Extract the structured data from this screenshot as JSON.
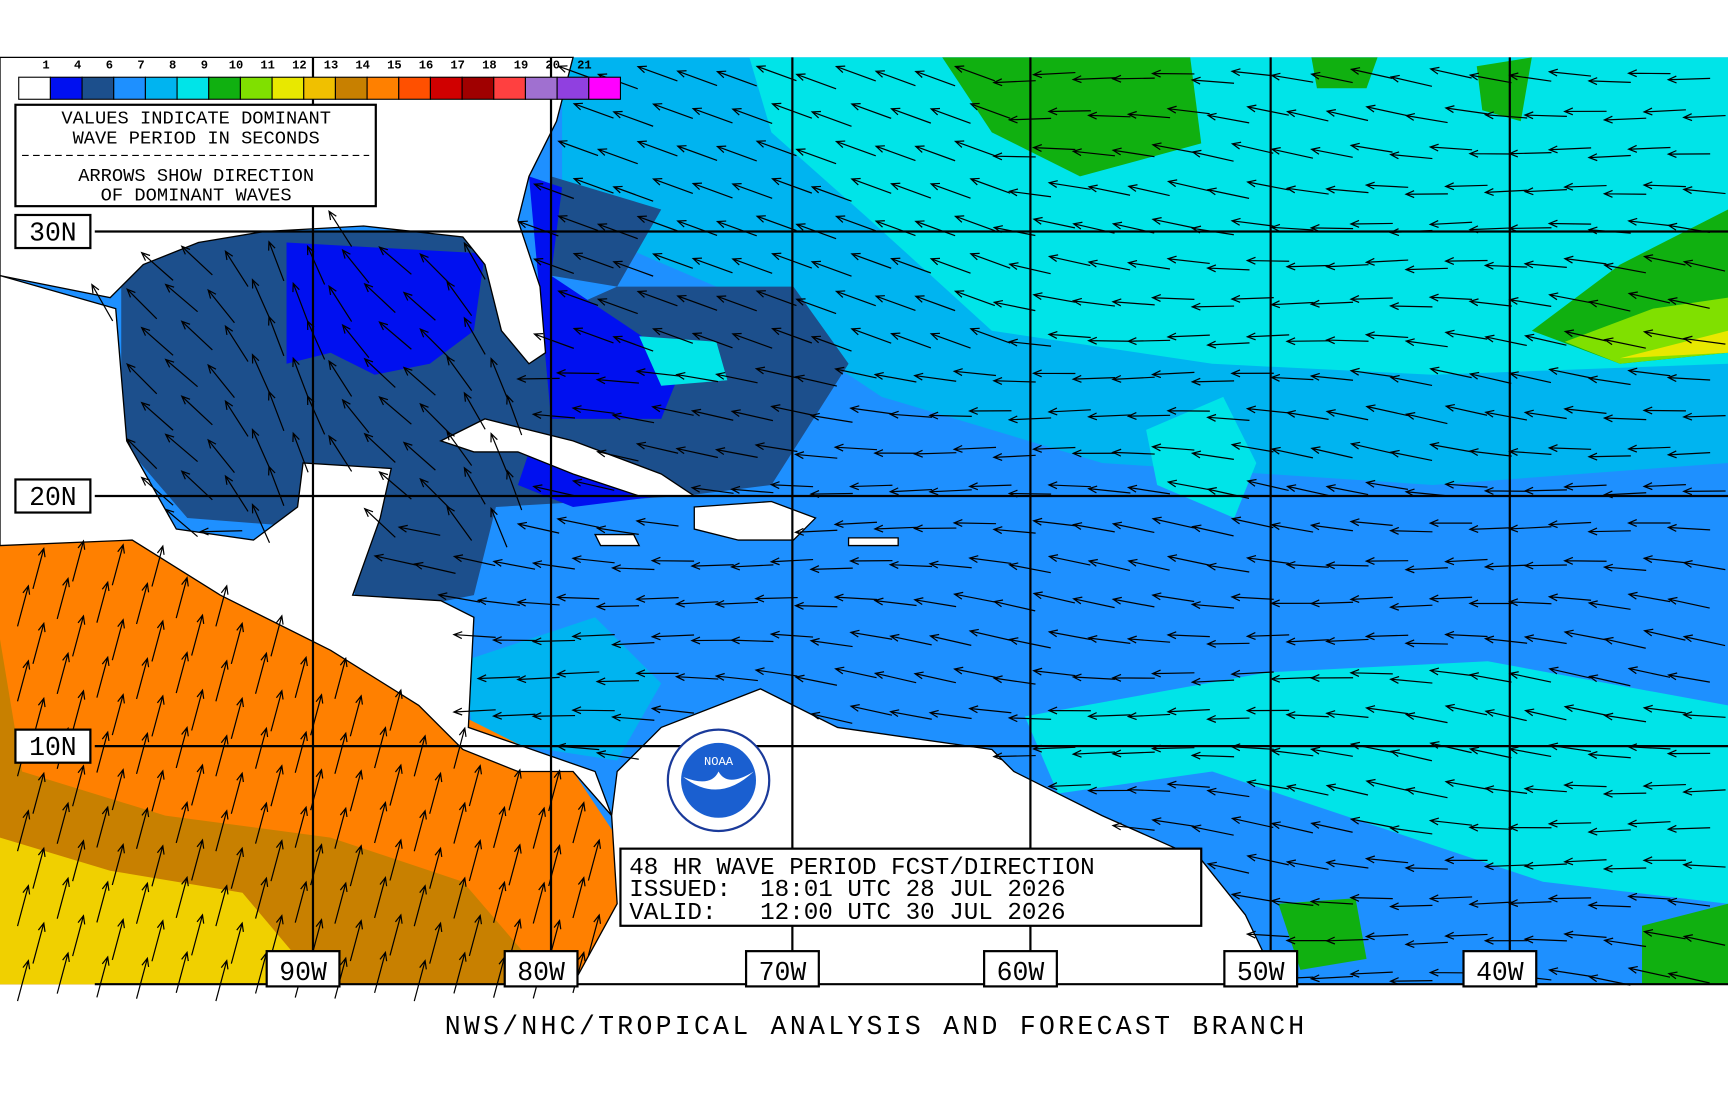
{
  "legend": {
    "labels": [
      1,
      4,
      6,
      7,
      8,
      9,
      10,
      11,
      12,
      13,
      14,
      15,
      16,
      17,
      18,
      19,
      20,
      21
    ],
    "colors": [
      "#ffffff",
      "#0010f0",
      "#1c4f8c",
      "#1e90ff",
      "#00b4f0",
      "#00e4e8",
      "#10b010",
      "#80e000",
      "#e8e800",
      "#f0c000",
      "#c88000",
      "#ff8000",
      "#ff5000",
      "#d00000",
      "#a00000",
      "#ff4040",
      "#a070d0",
      "#9040e0",
      "#ff00ff"
    ]
  },
  "info_box": {
    "lines": [
      "VALUES INDICATE DOMINANT",
      "WAVE PERIOD IN SECONDS",
      "ARROWS SHOW DIRECTION",
      "OF DOMINANT WAVES"
    ]
  },
  "latitude_labels": [
    "30N",
    "20N",
    "10N"
  ],
  "longitude_labels": [
    "90W",
    "80W",
    "70W",
    "60W",
    "50W",
    "40W"
  ],
  "forecast_box": {
    "title": "48 HR WAVE PERIOD FCST/DIRECTION",
    "issued": "ISSUED:  18:01 UTC 28 JUL 2026",
    "valid": "VALID:   12:00 UTC 30 JUL 2026"
  },
  "footer": "NWS/NHC/TROPICAL ANALYSIS AND FORECAST BRANCH"
}
